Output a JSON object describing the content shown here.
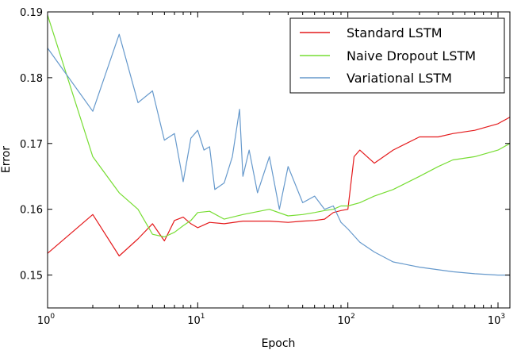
{
  "chart_data": {
    "type": "line",
    "title": "",
    "xlabel": "Epoch",
    "ylabel": "Error",
    "xscale": "log",
    "xlim": [
      1,
      1200
    ],
    "ylim": [
      0.145,
      0.19
    ],
    "x_ticks": [
      {
        "value": 1,
        "base": "10",
        "exp": "0"
      },
      {
        "value": 10,
        "base": "10",
        "exp": "1"
      },
      {
        "value": 100,
        "base": "10",
        "exp": "2"
      },
      {
        "value": 1000,
        "base": "10",
        "exp": "3"
      }
    ],
    "y_ticks": [
      {
        "value": 0.15,
        "label": "0.15"
      },
      {
        "value": 0.16,
        "label": "0.16"
      },
      {
        "value": 0.17,
        "label": "0.17"
      },
      {
        "value": 0.18,
        "label": "0.18"
      },
      {
        "value": 0.19,
        "label": "0.19"
      }
    ],
    "grid": false,
    "legend_position": "top-right",
    "series": [
      {
        "name": "Standard LSTM",
        "color": "#e41a1c",
        "x": [
          1,
          2,
          3,
          4,
          5,
          6,
          7,
          8,
          9,
          10,
          12,
          15,
          20,
          30,
          40,
          50,
          60,
          70,
          80,
          90,
          100,
          110,
          120,
          150,
          200,
          300,
          400,
          500,
          700,
          1000,
          1200
        ],
        "y": [
          0.1533,
          0.1592,
          0.1529,
          0.1555,
          0.1578,
          0.1552,
          0.1583,
          0.1588,
          0.1578,
          0.1572,
          0.158,
          0.1578,
          0.1582,
          0.1582,
          0.158,
          0.1582,
          0.1583,
          0.1585,
          0.1595,
          0.1598,
          0.16,
          0.168,
          0.169,
          0.167,
          0.169,
          0.171,
          0.171,
          0.1715,
          0.172,
          0.173,
          0.174
        ]
      },
      {
        "name": "Naive Dropout LSTM",
        "color": "#77dd33",
        "x": [
          1,
          2,
          3,
          4,
          5,
          6,
          7,
          8,
          9,
          10,
          12,
          15,
          20,
          30,
          40,
          50,
          60,
          70,
          80,
          90,
          100,
          120,
          150,
          200,
          300,
          400,
          500,
          700,
          1000,
          1200
        ],
        "y": [
          0.1895,
          0.168,
          0.1625,
          0.16,
          0.1562,
          0.1558,
          0.1565,
          0.1575,
          0.1583,
          0.1595,
          0.1597,
          0.1585,
          0.1592,
          0.16,
          0.159,
          0.1592,
          0.1595,
          0.1598,
          0.16,
          0.1605,
          0.1605,
          0.161,
          0.162,
          0.163,
          0.165,
          0.1665,
          0.1675,
          0.168,
          0.169,
          0.17
        ]
      },
      {
        "name": "Variational LSTM",
        "color": "#6699cc",
        "x": [
          1,
          2,
          3,
          4,
          5,
          6,
          7,
          8,
          9,
          10,
          11,
          12,
          13,
          15,
          17,
          19,
          20,
          22,
          25,
          30,
          35,
          40,
          50,
          60,
          70,
          80,
          90,
          100,
          120,
          150,
          200,
          300,
          400,
          500,
          700,
          1000,
          1200
        ],
        "y": [
          0.1845,
          0.1749,
          0.1866,
          0.1762,
          0.178,
          0.1705,
          0.1715,
          0.1642,
          0.1708,
          0.172,
          0.169,
          0.1695,
          0.163,
          0.164,
          0.168,
          0.1752,
          0.165,
          0.169,
          0.1625,
          0.168,
          0.16,
          0.1665,
          0.161,
          0.162,
          0.16,
          0.1605,
          0.158,
          0.157,
          0.155,
          0.1535,
          0.152,
          0.1512,
          0.1508,
          0.1505,
          0.1502,
          0.15,
          0.15
        ]
      }
    ]
  }
}
